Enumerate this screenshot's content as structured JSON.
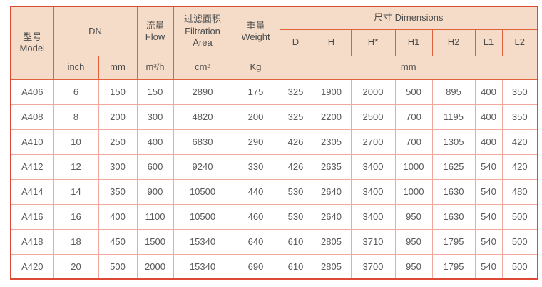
{
  "table": {
    "header": {
      "model": {
        "zh": "型号",
        "en": "Model"
      },
      "dn": "DN",
      "flow": {
        "zh": "流量",
        "en": "Flow"
      },
      "filtration": {
        "zh": "过滤面积",
        "en": "Filtration Area"
      },
      "weight": {
        "zh": "重量",
        "en": "Weight"
      },
      "dimensions": "尺寸 Dimensions",
      "dim_cols": [
        "D",
        "H",
        "H*",
        "H1",
        "H2",
        "L1",
        "L2"
      ],
      "units": {
        "inch": "inch",
        "mm": "mm",
        "flow": "m³/h",
        "area": "cm²",
        "weight": "Kg",
        "dims": "mm"
      }
    },
    "rows": [
      {
        "cells": [
          "A406",
          "6",
          "150",
          "150",
          "2890",
          "175",
          "325",
          "1900",
          "2000",
          "500",
          "895",
          "400",
          "350"
        ]
      },
      {
        "cells": [
          "A408",
          "8",
          "200",
          "300",
          "4820",
          "200",
          "325",
          "2200",
          "2500",
          "700",
          "1195",
          "400",
          "350"
        ]
      },
      {
        "cells": [
          "A410",
          "10",
          "250",
          "400",
          "6830",
          "290",
          "426",
          "2305",
          "2700",
          "700",
          "1305",
          "400",
          "420"
        ]
      },
      {
        "cells": [
          "A412",
          "12",
          "300",
          "600",
          "9240",
          "330",
          "426",
          "2635",
          "3400",
          "1000",
          "1625",
          "540",
          "420"
        ]
      },
      {
        "cells": [
          "A414",
          "14",
          "350",
          "900",
          "10500",
          "440",
          "530",
          "2640",
          "3400",
          "1000",
          "1630",
          "540",
          "480"
        ]
      },
      {
        "cells": [
          "A416",
          "16",
          "400",
          "1100",
          "10500",
          "460",
          "530",
          "2640",
          "3400",
          "950",
          "1630",
          "540",
          "500"
        ]
      },
      {
        "cells": [
          "A418",
          "18",
          "450",
          "1500",
          "15340",
          "640",
          "610",
          "2805",
          "3710",
          "950",
          "1795",
          "540",
          "500"
        ]
      },
      {
        "cells": [
          "A420",
          "20",
          "500",
          "2000",
          "15340",
          "690",
          "610",
          "2805",
          "3700",
          "950",
          "1795",
          "540",
          "500"
        ]
      }
    ],
    "colors": {
      "header_bg": "#f5dcc8",
      "header_border": "#e2613a",
      "outer_border": "#dc4a35",
      "data_border": "#f0a79c",
      "header_text": "#4d4d4d",
      "data_text": "#595959"
    }
  }
}
